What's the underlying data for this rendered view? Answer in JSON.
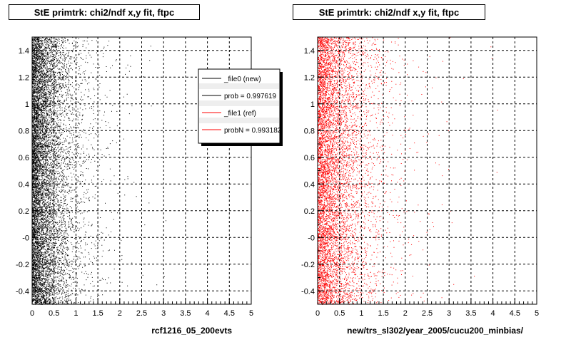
{
  "chart_data": [
    {
      "type": "scatter",
      "title": "StE primtrk: chi2/ndf x,y fit, ftpc",
      "xlabel": "rcf1216_05_200evts",
      "xlim": [
        0,
        5
      ],
      "ylim": [
        -0.5,
        1.5
      ],
      "x_ticks": [
        "0",
        "0.5",
        "1",
        "1.5",
        "2",
        "2.5",
        "3",
        "3.5",
        "4",
        "4.5",
        "5"
      ],
      "y_ticks": [
        "-0.4",
        "-0.2",
        "-0",
        "0.2",
        "0.4",
        "0.6",
        "0.8",
        "1",
        "1.2",
        "1.4"
      ],
      "grid": true,
      "point_color": "#000000",
      "density": {
        "x_scale": 0.35,
        "n_points": 9000
      },
      "legend": {
        "placement": "top-right",
        "entries": [
          {
            "label": "_file0 (new)",
            "color": "#000000"
          },
          {
            "label": "prob = 0.997619",
            "color": "#000000"
          },
          {
            "label": "_file1 (ref)",
            "color": "#ff0000"
          },
          {
            "label": "probN = 0.993182",
            "color": "#ff0000"
          }
        ]
      }
    },
    {
      "type": "scatter",
      "title": "StE primtrk: chi2/ndf x,y fit, ftpc",
      "xlabel": "new/trs_sl302/year_2005/cucu200_minbias/",
      "xlim": [
        0,
        5
      ],
      "ylim": [
        -0.5,
        1.5
      ],
      "x_ticks": [
        "0",
        "0.5",
        "1",
        "1.5",
        "2",
        "2.5",
        "3",
        "3.5",
        "4",
        "4.5",
        "5"
      ],
      "y_ticks": [
        "-0.4",
        "-0.2",
        "-0",
        "0.2",
        "0.4",
        "0.6",
        "0.8",
        "1",
        "1.2",
        "1.4"
      ],
      "grid": true,
      "point_color": "#ff0000",
      "density": {
        "x_scale": 0.45,
        "n_points": 7500
      }
    }
  ]
}
